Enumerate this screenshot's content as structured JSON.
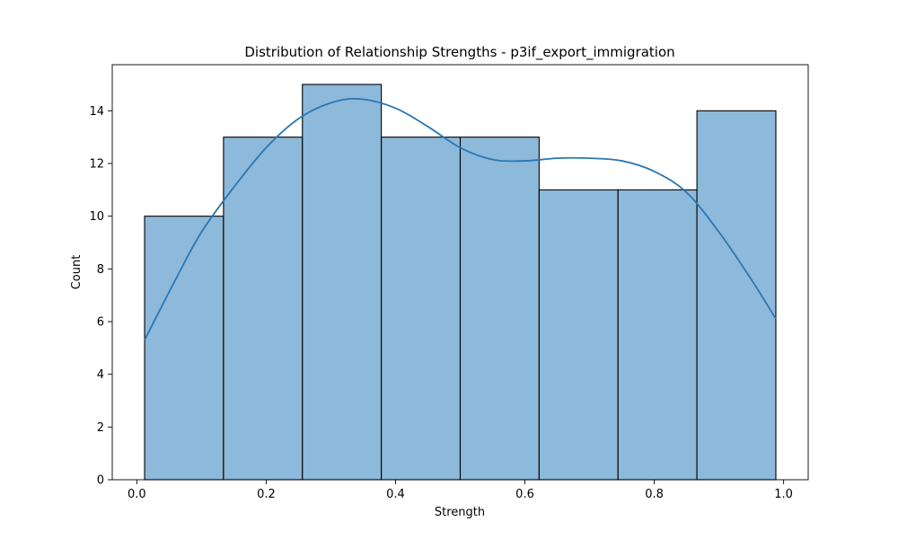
{
  "chart_data": {
    "type": "bar",
    "title": "Distribution of Relationship Strengths - p3if_export_immigration",
    "xlabel": "Strength",
    "ylabel": "Count",
    "xlim": [
      -0.038,
      1.038
    ],
    "ylim": [
      0,
      15.75
    ],
    "xticks": [
      0.0,
      0.2,
      0.4,
      0.6,
      0.8,
      1.0
    ],
    "xtick_labels": [
      "0.0",
      "0.2",
      "0.4",
      "0.6",
      "0.8",
      "1.0"
    ],
    "yticks": [
      0,
      2,
      4,
      6,
      8,
      10,
      12,
      14
    ],
    "ytick_labels": [
      "0",
      "2",
      "4",
      "6",
      "8",
      "10",
      "12",
      "14"
    ],
    "bin_edges": [
      0.012,
      0.134,
      0.256,
      0.378,
      0.5,
      0.622,
      0.744,
      0.866,
      0.988
    ],
    "counts": [
      10,
      13,
      15,
      13,
      13,
      11,
      11,
      14
    ],
    "kde": {
      "x": [
        0.012,
        0.06,
        0.1,
        0.15,
        0.2,
        0.25,
        0.3,
        0.345,
        0.4,
        0.45,
        0.5,
        0.55,
        0.6,
        0.65,
        0.7,
        0.75,
        0.8,
        0.85,
        0.9,
        0.95,
        0.988
      ],
      "y": [
        5.3,
        7.6,
        9.4,
        11.1,
        12.6,
        13.7,
        14.3,
        14.45,
        14.1,
        13.4,
        12.6,
        12.15,
        12.1,
        12.2,
        12.2,
        12.1,
        11.7,
        10.9,
        9.4,
        7.6,
        6.1
      ]
    },
    "bar_color": "#8db9da",
    "bar_edge_color": "#000000",
    "kde_color": "#2a77b4",
    "grid": false,
    "legend": false
  }
}
